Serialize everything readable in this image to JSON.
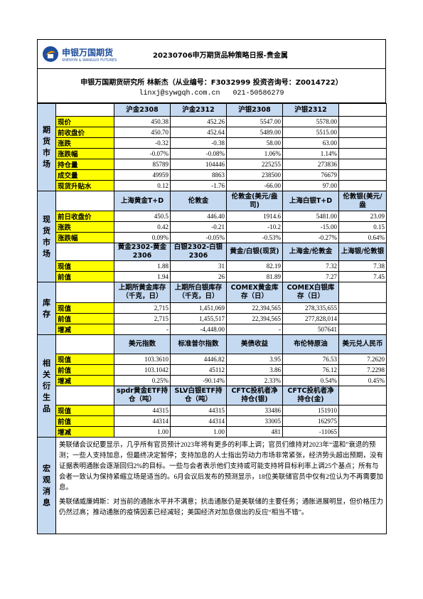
{
  "header": {
    "logo": {
      "name": "申银万国期货",
      "subtitle": "SHENYIN & WANGUO FUTURES"
    },
    "title": "20230706申万期货品种策略日报-贵金属",
    "author": "申银万国期货研究所 林新杰（从业编号：F3032999 投资咨询号：Z0014722）",
    "email": "linxj@sywgqh.com.cn",
    "phone": "021-50586279"
  },
  "sections": [
    {
      "label": "期货市场",
      "blocks": [
        {
          "header": [
            "沪金2308",
            "沪金2312",
            "沪银2308",
            "沪银2312"
          ],
          "rows": [
            {
              "label": "现价",
              "values": [
                "450.38",
                "452.26",
                "5547.00",
                "5578.00"
              ]
            },
            {
              "label": "前收盘价",
              "values": [
                "450.70",
                "452.64",
                "5489.00",
                "5515.00"
              ]
            },
            {
              "label": "涨跌",
              "values": [
                "-0.32",
                "-0.38",
                "58.00",
                "63.00"
              ]
            },
            {
              "label": "涨跌幅",
              "values": [
                "-0.07%",
                "-0.08%",
                "1.06%",
                "1.14%"
              ]
            },
            {
              "label": "持仓量",
              "values": [
                "85789",
                "104446",
                "225255",
                "273836"
              ]
            },
            {
              "label": "成交量",
              "values": [
                "49959",
                "8863",
                "238500",
                "76679"
              ]
            },
            {
              "label": "现货升贴水",
              "values": [
                "0.12",
                "-1.76",
                "-66.00",
                "97.00"
              ]
            }
          ]
        }
      ]
    },
    {
      "label": "现货市场",
      "blocks": [
        {
          "header": [
            "上海黄金T+D",
            "伦敦金",
            "伦敦金(美元/盎司)",
            "上海白银T+D",
            "伦敦银(美元/盎"
          ],
          "rows": [
            {
              "label": "前日收盘价",
              "values": [
                "450.5",
                "446.40",
                "1914.6",
                "5481.00",
                "23.09"
              ]
            },
            {
              "label": "涨跌",
              "values": [
                "0.42",
                "-0.21",
                "-10.2",
                "-15.00",
                "0.15"
              ]
            },
            {
              "label": "涨跌幅",
              "values": [
                "0.09%",
                "-0.05%",
                "-0.53%",
                "-0.27%",
                "0.64%"
              ]
            }
          ]
        },
        {
          "header": [
            "黄金2302-黄金2306",
            "白银2302-白银2306",
            "黄金/白银(现货)",
            "上海金/伦敦金",
            "上海银/伦敦银"
          ],
          "rows": [
            {
              "label": "现值",
              "values": [
                "1.88",
                "31",
                "82.19",
                "7.32",
                "7.38"
              ]
            },
            {
              "label": "前值",
              "values": [
                "1.94",
                "26",
                "81.89",
                "7.27",
                "7.45"
              ]
            }
          ]
        }
      ]
    },
    {
      "label": "库存",
      "blocks": [
        {
          "header": [
            "上期所黄金库存（千克，日）",
            "上期所白银库存（千克，日）",
            "COMEX黄金库存（日）",
            "COMEX白银库存（日）"
          ],
          "rows": [
            {
              "label": "现值",
              "values": [
                "2,715",
                "1,451,069",
                "22,394,565",
                "278,335,655"
              ]
            },
            {
              "label": "前值",
              "values": [
                "2,715",
                "1,455,517",
                "22,394,565",
                "277,828,014"
              ]
            },
            {
              "label": "增减",
              "values": [
                "-",
                "-4,448.00",
                "-",
                "507641"
              ]
            }
          ]
        }
      ]
    },
    {
      "label": "相关衍生品",
      "blocks": [
        {
          "header": [
            "美元指数",
            "标准普尔指数",
            "美债收益",
            "布伦特原油",
            "美元兑人民币"
          ],
          "rows": [
            {
              "label": "现值",
              "values": [
                "103.3610",
                "4446.82",
                "3.95",
                "76.53",
                "7.2620"
              ]
            },
            {
              "label": "前值",
              "values": [
                "103.1042",
                "45112",
                "3.86",
                "76.12",
                "7.2298"
              ]
            },
            {
              "label": "增减",
              "values": [
                "0.25%",
                "-90.14%",
                "2.33%",
                "0.54%",
                "0.45%"
              ]
            }
          ]
        },
        {
          "header": [
            "spdr黄金ETF持仓（吨）",
            "SLV白银ETF持仓（吨）",
            "CFTC投机者净持仓(银)",
            "CFTC投机者净持仓(金)"
          ],
          "rows": [
            {
              "label": "现值",
              "values": [
                "44315",
                "44315",
                "33486",
                "151910"
              ]
            },
            {
              "label": "前值",
              "values": [
                "44314",
                "44314",
                "33005",
                "162975"
              ]
            },
            {
              "label": "增减",
              "values": [
                "1.00",
                "1.00",
                "481",
                "-11065"
              ]
            }
          ]
        }
      ]
    }
  ],
  "macro": {
    "label": "宏观消息",
    "paragraphs": [
      "美联储会议纪要显示，几乎所有官员预计2023年将有更多的利率上调；官员们维持对2023年“温和”衰退的预测；一些人支持加息，但最终决定暂停；支持加息的人士指出劳动力市场非常紧张，经济势头超出预期，没有证据表明通胀会逐渐回归2%的目标。一些与会者表示他们支持或可能支持将目标利率上调25个基点；所有与会者一致认为保持紧缩立场是适当的。6月会议后发布的预测显示，18位美联储官员中仅有2位认为不再需要加息。",
      "美联储威廉姆斯：对当前的通胀水平并不满意；抗击通胀仍是美联储的主要任务；通胀进展明显，但价格压力仍然过高；推动通胀的疫情因素已经减轻；美国经济对加息做出的反应“相当不错”。"
    ]
  }
}
